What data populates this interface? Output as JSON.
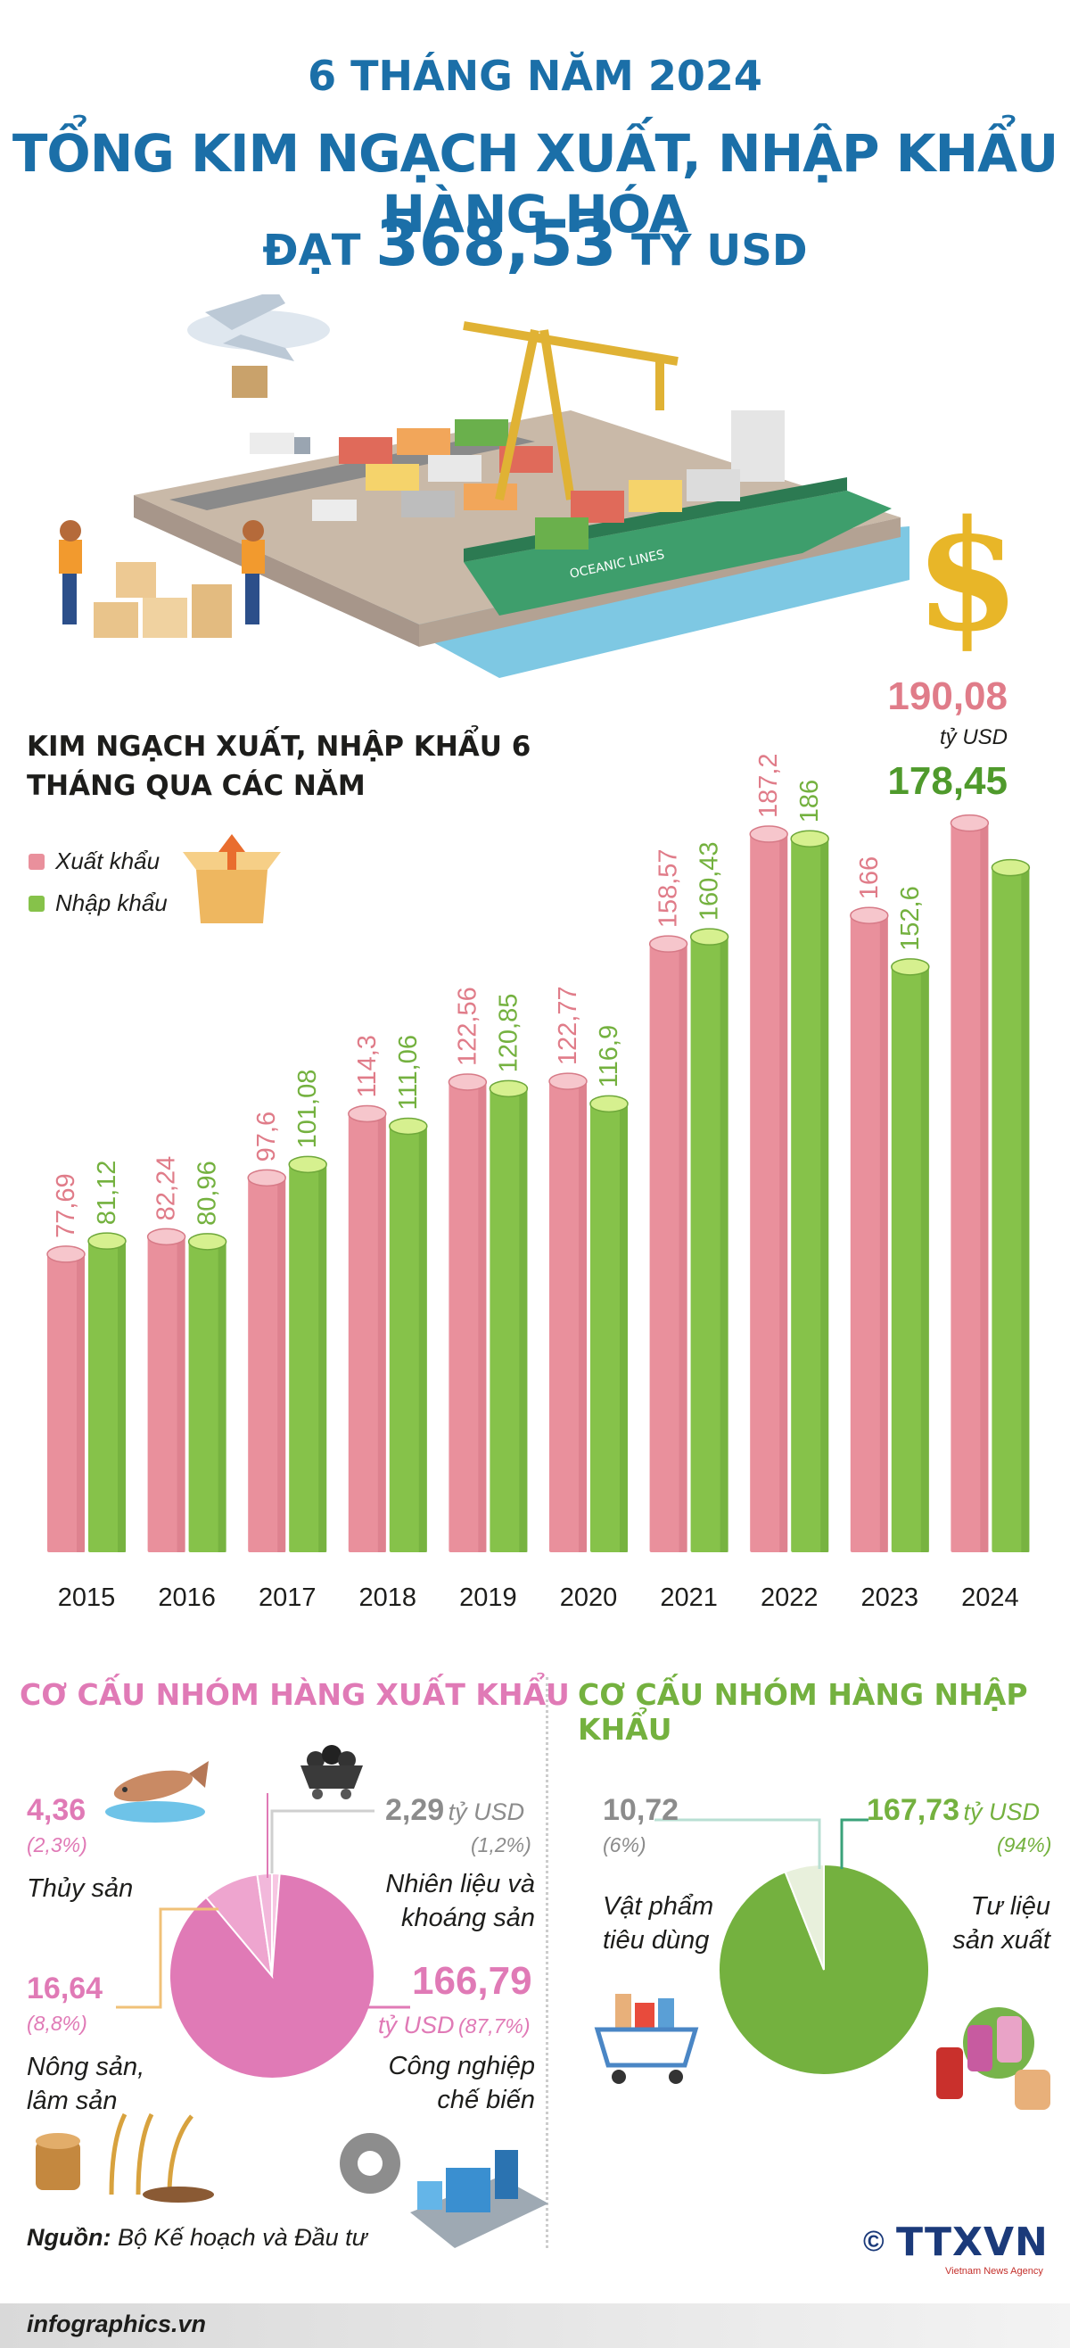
{
  "header": {
    "line1": "6 THÁNG NĂM 2024",
    "line2": "TỔNG KIM NGẠCH XUẤT, NHẬP KHẨU HÀNG HÓA",
    "line3_prefix": "ĐẠT",
    "line3_value": "368,53",
    "line3_suffix": "TỶ USD"
  },
  "illustration": {
    "port_label": "OCEANIC LINES",
    "dollar_symbol": "$"
  },
  "chart_data": {
    "type": "bar",
    "title": "KIM NGẠCH XUẤT, NHẬP KHẨU 6 THÁNG QUA CÁC NĂM",
    "categories": [
      "2015",
      "2016",
      "2017",
      "2018",
      "2019",
      "2020",
      "2021",
      "2022",
      "2023",
      "2024"
    ],
    "series": [
      {
        "name": "Xuất khẩu",
        "color": "#e9909c",
        "values": [
          77.69,
          82.24,
          97.6,
          114.3,
          122.56,
          122.77,
          158.57,
          187.2,
          166,
          190.08
        ],
        "labels": [
          "77,69",
          "82,24",
          "97,6",
          "114,3",
          "122,56",
          "122,77",
          "158,57",
          "187,2",
          "166",
          "190,08"
        ]
      },
      {
        "name": "Nhập khẩu",
        "color": "#86c24a",
        "values": [
          81.12,
          80.96,
          101.08,
          111.06,
          120.85,
          116.9,
          160.43,
          186,
          152.6,
          178.45
        ],
        "labels": [
          "81,12",
          "80,96",
          "101,08",
          "111,06",
          "120,85",
          "116,9",
          "160,43",
          "186",
          "152,6",
          "178,45"
        ]
      }
    ],
    "unit_label": "tỷ USD",
    "ylim": [
      0,
      200
    ]
  },
  "export_structure": {
    "heading": "CƠ CẤU NHÓM HÀNG XUẤT KHẨU",
    "color": "#e07ab6",
    "items": [
      {
        "value": "4,36",
        "pct": "(2,3%)",
        "label": "Thủy sản",
        "share": 2.3
      },
      {
        "value": "2,29",
        "unit": "tỷ USD",
        "pct": "(1,2%)",
        "label_1": "Nhiên liệu và",
        "label_2": "khoáng sản",
        "share": 1.2
      },
      {
        "value": "16,64",
        "pct": "(8,8%)",
        "label_1": "Nông sản,",
        "label_2": "lâm sản",
        "share": 8.8
      },
      {
        "value": "166,79",
        "unit": "tỷ USD",
        "pct": "(87,7%)",
        "label_1": "Công nghiệp",
        "label_2": "chế biến",
        "share": 87.7
      }
    ]
  },
  "import_structure": {
    "heading": "CƠ CẤU NHÓM HÀNG NHẬP KHẨU",
    "color": "#74b13f",
    "items": [
      {
        "value": "10,72",
        "pct": "(6%)",
        "label_1": "Vật phẩm",
        "label_2": "tiêu dùng",
        "share": 6
      },
      {
        "value": "167,73",
        "unit": "tỷ USD",
        "pct": "(94%)",
        "label_1": "Tư liệu",
        "label_2": "sản xuất",
        "share": 94
      }
    ]
  },
  "footer": {
    "source_label": "Nguồn:",
    "source_text": "Bộ Kế hoạch và Đầu tư",
    "site": "infographics.vn",
    "brand": "TTXVN",
    "brand_sub": "Vietnam News Agency",
    "copyright": "©"
  }
}
